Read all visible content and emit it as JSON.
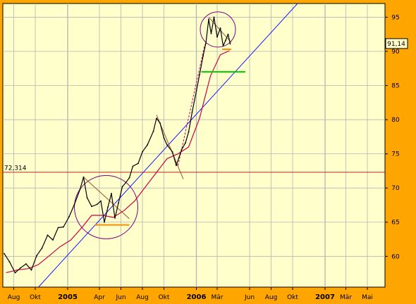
{
  "chart_data": {
    "type": "line",
    "y_axis_position": "right",
    "ylim": [
      55.5,
      97
    ],
    "y_ticks": [
      {
        "value": 60,
        "label": "60"
      },
      {
        "value": 65,
        "label": "65"
      },
      {
        "value": 70,
        "label": "70"
      },
      {
        "value": 75,
        "label": "75"
      },
      {
        "value": 80,
        "label": "80"
      },
      {
        "value": 85,
        "label": "85"
      },
      {
        "value": 90,
        "label": "90"
      },
      {
        "value": 95,
        "label": "95"
      }
    ],
    "x_range": [
      "2004-07-01",
      "2007-06-20"
    ],
    "x_ticks": [
      {
        "date": "2004-08-01",
        "label": "Aug",
        "year": false
      },
      {
        "date": "2004-10-01",
        "label": "Okt",
        "year": false
      },
      {
        "date": "2005-01-01",
        "label": "2005",
        "year": true
      },
      {
        "date": "2005-04-01",
        "label": "Apr",
        "year": false
      },
      {
        "date": "2005-06-01",
        "label": "Jun",
        "year": false
      },
      {
        "date": "2005-08-01",
        "label": "Aug",
        "year": false
      },
      {
        "date": "2005-10-01",
        "label": "Okt",
        "year": false
      },
      {
        "date": "2006-01-01",
        "label": "2006",
        "year": true
      },
      {
        "date": "2006-03-01",
        "label": "Mär",
        "year": false
      },
      {
        "date": "2006-06-01",
        "label": "Jun",
        "year": false
      },
      {
        "date": "2006-08-01",
        "label": "Aug",
        "year": false
      },
      {
        "date": "2006-10-01",
        "label": "Okt",
        "year": false
      },
      {
        "date": "2007-01-01",
        "label": "2007",
        "year": true
      },
      {
        "date": "2007-03-01",
        "label": "Mär",
        "year": false
      },
      {
        "date": "2007-05-01",
        "label": "Mai",
        "year": false
      }
    ],
    "grid": true,
    "price_series": [
      [
        "2004-07-05",
        60.4
      ],
      [
        "2004-07-20",
        59.2
      ],
      [
        "2004-08-05",
        57.6
      ],
      [
        "2004-08-20",
        58.3
      ],
      [
        "2004-09-05",
        58.9
      ],
      [
        "2004-09-20",
        58.0
      ],
      [
        "2004-10-05",
        60.1
      ],
      [
        "2004-10-20",
        61.2
      ],
      [
        "2004-11-05",
        63.1
      ],
      [
        "2004-11-20",
        62.4
      ],
      [
        "2004-12-05",
        64.2
      ],
      [
        "2004-12-20",
        64.3
      ],
      [
        "2005-01-05",
        65.8
      ],
      [
        "2005-01-20",
        67.6
      ],
      [
        "2005-02-05",
        69.8
      ],
      [
        "2005-02-15",
        71.6
      ],
      [
        "2005-02-25",
        68.6
      ],
      [
        "2005-03-10",
        67.3
      ],
      [
        "2005-03-25",
        67.6
      ],
      [
        "2005-04-05",
        68.1
      ],
      [
        "2005-04-15",
        65.0
      ],
      [
        "2005-04-25",
        67.2
      ],
      [
        "2005-05-05",
        69.2
      ],
      [
        "2005-05-15",
        65.6
      ],
      [
        "2005-05-25",
        67.8
      ],
      [
        "2005-06-05",
        70.2
      ],
      [
        "2005-06-15",
        70.8
      ],
      [
        "2005-06-25",
        71.5
      ],
      [
        "2005-07-05",
        73.2
      ],
      [
        "2005-07-20",
        73.6
      ],
      [
        "2005-08-01",
        75.3
      ],
      [
        "2005-08-15",
        76.3
      ],
      [
        "2005-09-01",
        78.3
      ],
      [
        "2005-09-10",
        80.2
      ],
      [
        "2005-09-20",
        79.5
      ],
      [
        "2005-10-01",
        77.3
      ],
      [
        "2005-10-10",
        76.3
      ],
      [
        "2005-10-25",
        75.3
      ],
      [
        "2005-11-05",
        73.3
      ],
      [
        "2005-11-20",
        75.6
      ],
      [
        "2005-12-01",
        76.6
      ],
      [
        "2005-12-10",
        78.2
      ],
      [
        "2005-12-20",
        81.1
      ],
      [
        "2006-01-01",
        84.2
      ],
      [
        "2006-01-10",
        86.6
      ],
      [
        "2006-01-20",
        89.3
      ],
      [
        "2006-01-28",
        91.2
      ],
      [
        "2006-02-05",
        94.7
      ],
      [
        "2006-02-12",
        92.6
      ],
      [
        "2006-02-20",
        95.0
      ],
      [
        "2006-03-01",
        92.1
      ],
      [
        "2006-03-10",
        93.4
      ],
      [
        "2006-03-18",
        90.8
      ],
      [
        "2006-03-25",
        91.6
      ],
      [
        "2006-04-01",
        92.5
      ],
      [
        "2006-04-07",
        91.1
      ]
    ],
    "moving_average": [
      [
        "2004-07-10",
        57.6
      ],
      [
        "2004-08-10",
        58.0
      ],
      [
        "2004-09-10",
        58.2
      ],
      [
        "2004-10-10",
        58.8
      ],
      [
        "2004-11-10",
        60.1
      ],
      [
        "2004-12-10",
        61.4
      ],
      [
        "2005-01-10",
        62.4
      ],
      [
        "2005-02-10",
        64.2
      ],
      [
        "2005-03-10",
        66.0
      ],
      [
        "2005-04-10",
        66.0
      ],
      [
        "2005-05-10",
        65.7
      ],
      [
        "2005-06-10",
        66.7
      ],
      [
        "2005-07-10",
        68.1
      ],
      [
        "2005-08-10",
        70.2
      ],
      [
        "2005-09-10",
        72.3
      ],
      [
        "2005-10-10",
        74.3
      ],
      [
        "2005-11-10",
        75.0
      ],
      [
        "2005-12-10",
        76.0
      ],
      [
        "2006-01-10",
        80.2
      ],
      [
        "2006-02-10",
        86.4
      ],
      [
        "2006-03-10",
        89.5
      ],
      [
        "2006-04-05",
        90.1
      ]
    ],
    "annotations": {
      "trend_channel_line": {
        "start": [
          "2004-10-10",
          55.5
        ],
        "end": [
          "2006-10-15",
          97
        ]
      },
      "horizontal_level": {
        "value": 72.314,
        "label": "72,314"
      },
      "current_price": {
        "value": 91.14,
        "label": "91,14"
      },
      "support_lines": [
        {
          "start": [
            "2005-03-20",
            64.6
          ],
          "end": [
            "2005-06-25",
            64.6
          ],
          "color": "#ff8c00"
        },
        {
          "start": [
            "2006-01-15",
            87.0
          ],
          "end": [
            "2006-05-20",
            87.0
          ],
          "color": "#00cc00"
        },
        {
          "start": [
            "2006-03-15",
            90.3
          ],
          "end": [
            "2006-04-10",
            90.3
          ],
          "color": "#ff8c00"
        }
      ],
      "downtrend_lines": [
        {
          "start": [
            "2005-02-15",
            71.6
          ],
          "end": [
            "2005-06-25",
            65.5
          ]
        },
        {
          "start": [
            "2005-09-10",
            80.7
          ],
          "end": [
            "2005-11-25",
            71.3
          ]
        },
        {
          "start": [
            "2006-02-05",
            95.0
          ],
          "end": [
            "2006-04-10",
            91.3
          ]
        }
      ],
      "dashed_lines": [
        {
          "start": [
            "2005-11-10",
            73.3
          ],
          "end": [
            "2006-01-25",
            91.0
          ]
        }
      ],
      "circles": [
        {
          "center": [
            "2005-04-20",
            67.2
          ],
          "radius_days": 90
        },
        {
          "center": [
            "2006-03-03",
            93.2
          ],
          "radius_days": 50
        }
      ]
    }
  }
}
